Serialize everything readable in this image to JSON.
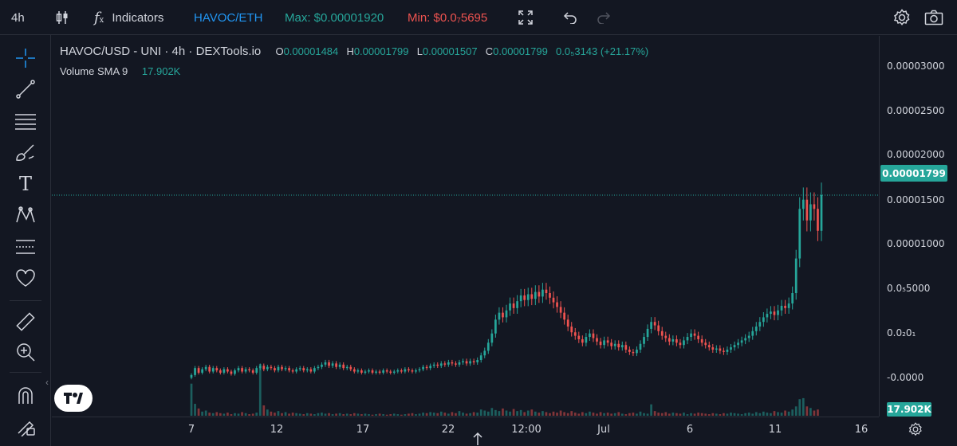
{
  "topbar": {
    "interval": "4h",
    "indicators_label": "Indicators",
    "pair_link": "HAVOC/ETH",
    "max_label": "Max: $0.00001920",
    "min_label": "Min: $0.0₇5695",
    "colors": {
      "pair": "#2196f3",
      "max": "#26a69a",
      "min": "#ef5350"
    }
  },
  "legend": {
    "symbol": "HAVOC/USD - UNI · 4h · DEXTools.io",
    "o_label": "O",
    "o_value": "0.00001484",
    "h_label": "H",
    "h_value": "0.00001799",
    "l_label": "L",
    "l_value": "0.00001507",
    "c_label": "C",
    "c_value": "0.00001799",
    "change": "0.0₅3143 (+21.17%)",
    "volume_name": "Volume SMA 9",
    "volume_value": "17.902K"
  },
  "price_scale": {
    "labels": [
      "0.00003000",
      "0.00002500",
      "0.00002000",
      "0.00001500",
      "0.00001000",
      "0.0₅5000",
      "0.0₂0₁",
      "-0.0000"
    ],
    "current_price": "0.00001799",
    "current_volume": "17.902K"
  },
  "time_scale": {
    "labels": [
      "7",
      "12",
      "17",
      "22",
      "12:00",
      "Jul",
      "6",
      "11",
      "16"
    ]
  },
  "chart_data": {
    "type": "candlestick",
    "title": "HAVOC/USD - UNI · 4h · DEXTools.io",
    "ylim": [
      -1.2e-06,
      3.18e-05
    ],
    "price_now": 1.799e-05,
    "colors": {
      "up": "#26a69a",
      "down": "#ef5350"
    },
    "closes": [
      2.4e-06,
      3e-06,
      2.6e-06,
      2.9e-06,
      3.1e-06,
      2.7e-06,
      3e-06,
      2.8e-06,
      2.6e-06,
      2.9e-06,
      2.7e-06,
      2.5e-06,
      2.8e-06,
      3e-06,
      2.7e-06,
      2.9e-06,
      2.8e-06,
      2.6e-06,
      3e-06,
      3.2e-06,
      2.9e-06,
      3.1e-06,
      3e-06,
      2.8e-06,
      3.1e-06,
      2.9e-06,
      3e-06,
      2.8e-06,
      2.7e-06,
      2.9e-06,
      3e-06,
      2.8e-06,
      2.9e-06,
      2.7e-06,
      3e-06,
      3.1e-06,
      3.3e-06,
      3.5e-06,
      3.2e-06,
      3.4e-06,
      3.1e-06,
      3.3e-06,
      3e-06,
      3.1e-06,
      2.9e-06,
      2.7e-06,
      2.8e-06,
      2.6e-06,
      2.7e-06,
      2.8e-06,
      2.6e-06,
      2.7e-06,
      2.6e-06,
      2.8e-06,
      2.7e-06,
      2.6e-06,
      2.7e-06,
      2.8e-06,
      2.7e-06,
      2.9e-06,
      2.8e-06,
      2.7e-06,
      2.8e-06,
      2.9e-06,
      3.1e-06,
      3e-06,
      3.2e-06,
      3.3e-06,
      3.2e-06,
      3.4e-06,
      3.3e-06,
      3.5e-06,
      3.4e-06,
      3.3e-06,
      3.5e-06,
      3.6e-06,
      3.4e-06,
      3.6e-06,
      3.5e-06,
      3.7e-06,
      4.1e-06,
      4.5e-06,
      5.2e-06,
      6e-06,
      7.2e-06,
      7.8e-06,
      7.4e-06,
      8e-06,
      8.6e-06,
      8.2e-06,
      8.8e-06,
      9.3e-06,
      8.9e-06,
      9.4e-06,
      9e-06,
      9.6e-06,
      9.2e-06,
      9.8e-06,
      9.5e-06,
      9.1e-06,
      8.7e-06,
      8.3e-06,
      7.8e-06,
      7.2e-06,
      6.6e-06,
      6.1e-06,
      5.8e-06,
      5.5e-06,
      5.2e-06,
      5.7e-06,
      6e-06,
      5.6e-06,
      5.3e-06,
      5e-06,
      5.4e-06,
      5.2e-06,
      4.9e-06,
      5.1e-06,
      4.8e-06,
      5e-06,
      4.6e-06,
      4.4e-06,
      4.3e-06,
      4.6e-06,
      5.1e-06,
      5.7e-06,
      6.4e-06,
      7e-06,
      6.7e-06,
      6.2e-06,
      5.8e-06,
      5.6e-06,
      5.3e-06,
      5.5e-06,
      5.2e-06,
      5e-06,
      5.4e-06,
      5.7e-06,
      6e-06,
      5.8e-06,
      5.5e-06,
      5.2e-06,
      5e-06,
      4.8e-06,
      4.6e-06,
      4.7e-06,
      4.5e-06,
      4.4e-06,
      4.6e-06,
      4.8e-06,
      5e-06,
      5.2e-06,
      5.4e-06,
      5.6e-06,
      5.8e-06,
      6.2e-06,
      6.6e-06,
      7e-06,
      7.4e-06,
      7.7e-06,
      7.9e-06,
      7.6e-06,
      8e-06,
      8.4e-06,
      8.2e-06,
      8.6e-06,
      9.5e-06,
      1.25e-05,
      1.68e-05,
      1.76e-05,
      1.58e-05,
      1.72e-05,
      1.68e-05,
      1.49e-05,
      1.8e-05
    ],
    "volumes": [
      62,
      23,
      14,
      8,
      10,
      6,
      5,
      7,
      5,
      4,
      6,
      3,
      5,
      4,
      7,
      5,
      3,
      4,
      6,
      100,
      20,
      12,
      8,
      6,
      9,
      5,
      7,
      4,
      6,
      5,
      4,
      3,
      5,
      4,
      3,
      5,
      6,
      4,
      5,
      3,
      4,
      5,
      3,
      4,
      3,
      5,
      4,
      3,
      4,
      3,
      2,
      3,
      4,
      3,
      2,
      3,
      4,
      3,
      2,
      3,
      4,
      5,
      3,
      4,
      6,
      5,
      7,
      6,
      5,
      8,
      6,
      4,
      7,
      5,
      9,
      6,
      4,
      5,
      7,
      6,
      12,
      10,
      8,
      15,
      11,
      9,
      14,
      10,
      8,
      13,
      9,
      11,
      7,
      10,
      12,
      8,
      6,
      9,
      7,
      5,
      8,
      6,
      10,
      7,
      5,
      9,
      6,
      4,
      7,
      5,
      8,
      6,
      4,
      7,
      5,
      6,
      4,
      5,
      7,
      4,
      3,
      5,
      6,
      4,
      8,
      5,
      4,
      22,
      9,
      6,
      5,
      7,
      4,
      6,
      5,
      4,
      6,
      3,
      5,
      4,
      6,
      5,
      4,
      3,
      5,
      4,
      3,
      5,
      4,
      6,
      5,
      4,
      3,
      5,
      6,
      4,
      7,
      5,
      8,
      6,
      5,
      9,
      7,
      6,
      10,
      8,
      12,
      18,
      32,
      34,
      18,
      15,
      10,
      12
    ]
  }
}
